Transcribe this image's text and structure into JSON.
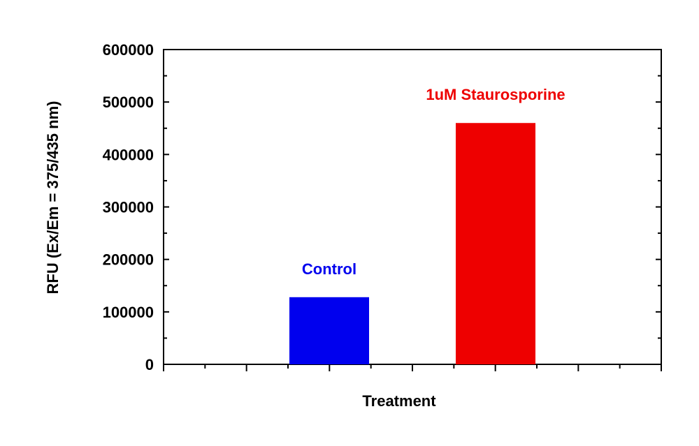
{
  "chart_data": {
    "type": "bar",
    "title": "",
    "xlabel": "Treatment",
    "ylabel": "RFU (Ex/Em = 375/435 nm)",
    "ylim": [
      0,
      600000
    ],
    "yticks": [
      "0",
      "100000",
      "200000",
      "300000",
      "400000",
      "500000",
      "600000"
    ],
    "categories": [
      "Control",
      "1uM Staurosporine"
    ],
    "values": [
      128000,
      460000
    ],
    "colors": [
      "#0000ee",
      "#ee0000"
    ],
    "grid": false,
    "legend": "none"
  }
}
